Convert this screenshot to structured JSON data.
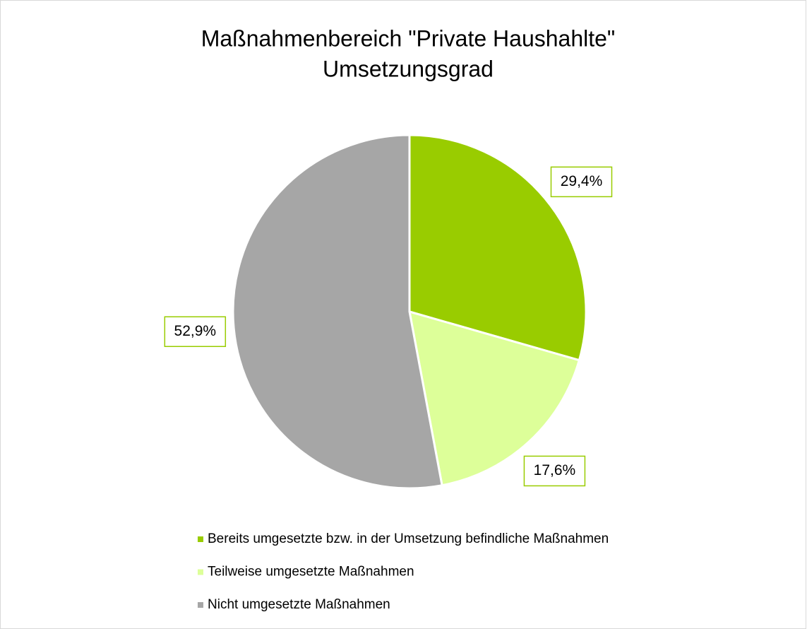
{
  "chart_data": {
    "type": "pie",
    "title": [
      "Maßnahmenbereich \"Private Haushahlte\"",
      "Umsetzungsgrad"
    ],
    "categories": [
      "Bereits umgesetzte bzw. in der Umsetzung befindliche Maßnahmen",
      "Teilweise umgesetzte Maßnahmen",
      "Nicht umgesetzte Maßnahmen"
    ],
    "values": [
      29.4,
      17.6,
      52.9
    ],
    "value_labels": [
      "29,4%",
      "17,6%",
      "52,9%"
    ],
    "colors": [
      "#99cc00",
      "#ddff99",
      "#a6a6a6"
    ],
    "legend": "bottom"
  }
}
